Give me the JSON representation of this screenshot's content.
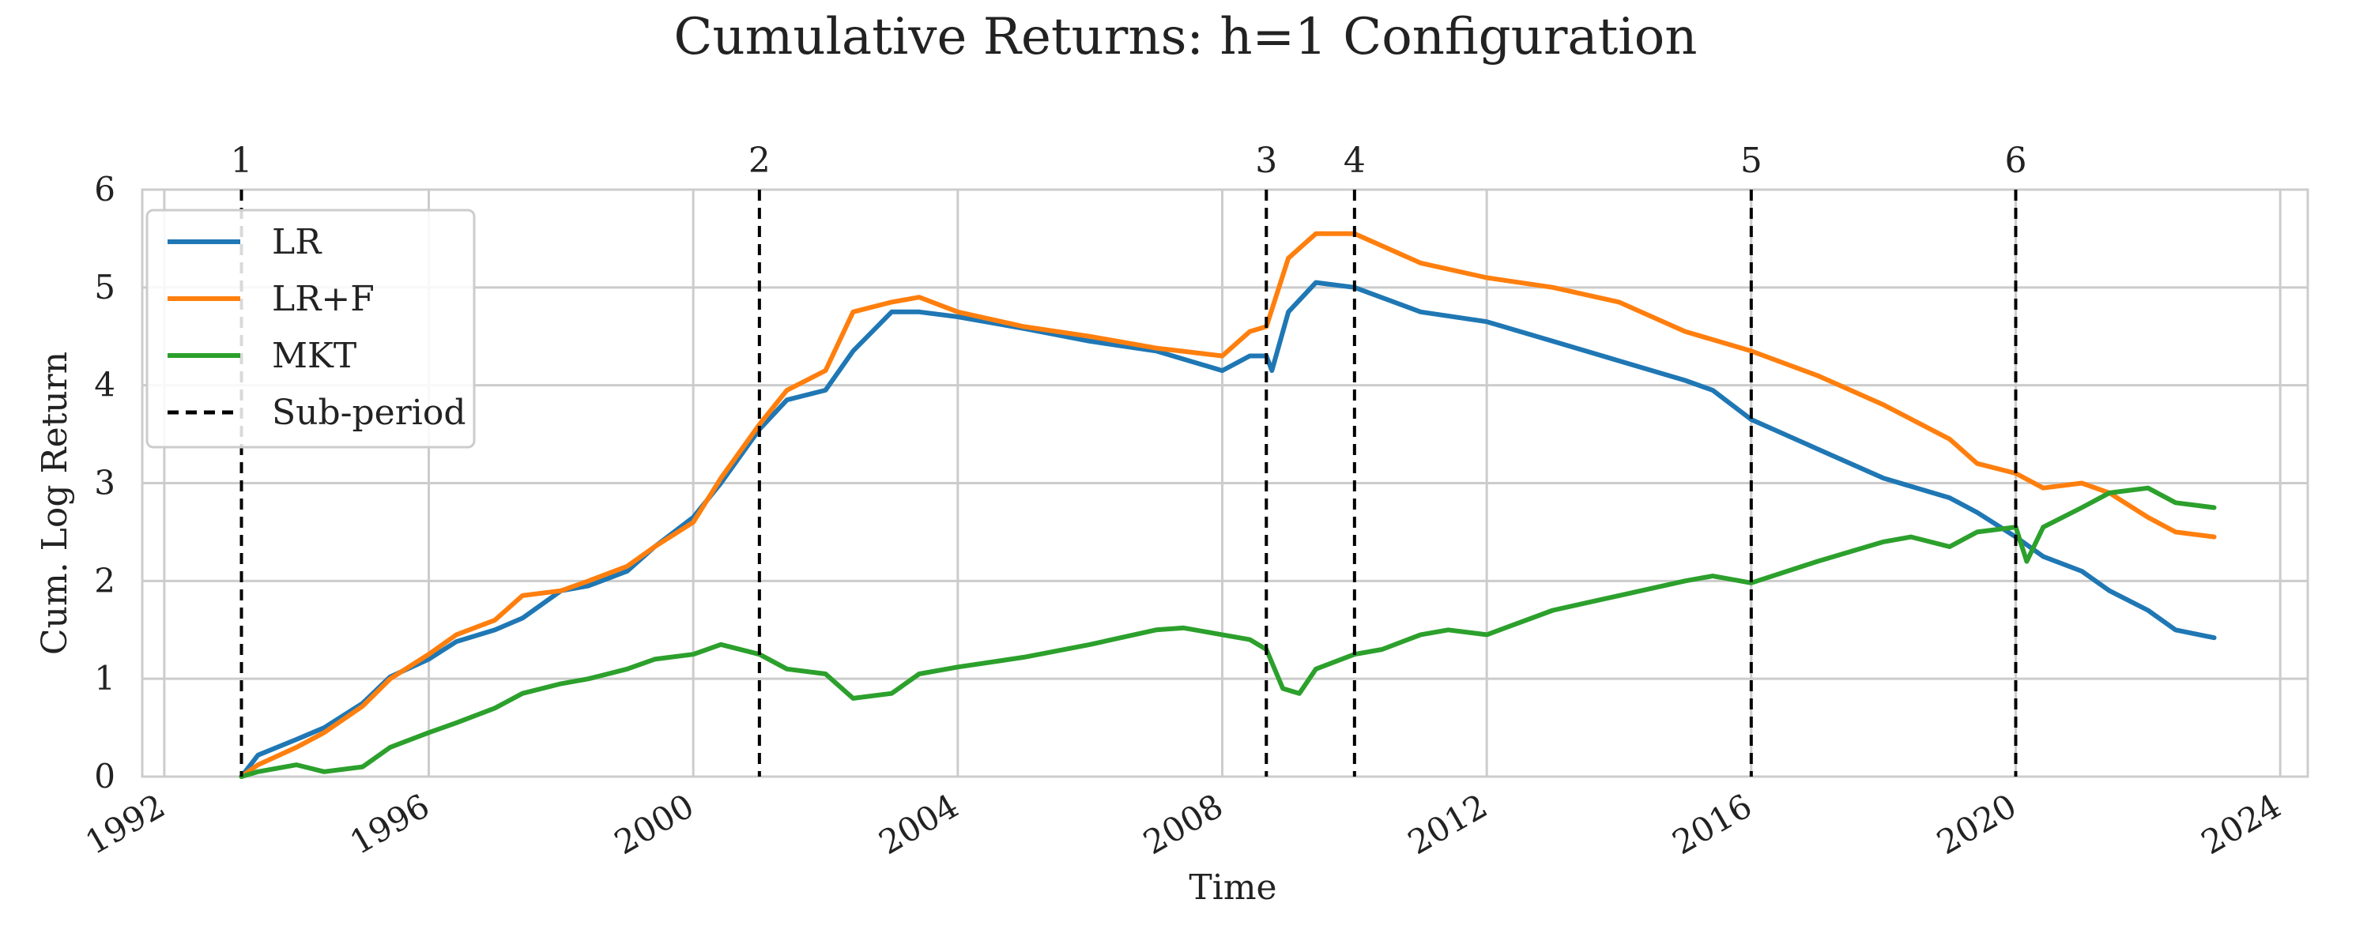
{
  "chart_data": {
    "type": "line",
    "title": "Cumulative Returns: h=1 Configuration",
    "xlabel": "Time",
    "ylabel": "Cum. Log Return",
    "xlim": [
      "1991-09-01",
      "2024-06-01"
    ],
    "ylim": [
      0,
      6
    ],
    "x_ticks": [
      "1992",
      "1996",
      "2000",
      "2004",
      "2008",
      "2012",
      "2016",
      "2020",
      "2024"
    ],
    "y_ticks": [
      "0",
      "1",
      "2",
      "3",
      "4",
      "5",
      "6"
    ],
    "grid": true,
    "legend_position": "top-left",
    "subperiods": [
      {
        "label": "1",
        "date": "1993-03-01"
      },
      {
        "label": "2",
        "date": "2001-01-01"
      },
      {
        "label": "3",
        "date": "2008-09-01"
      },
      {
        "label": "4",
        "date": "2010-01-01"
      },
      {
        "label": "5",
        "date": "2016-01-01"
      },
      {
        "label": "6",
        "date": "2020-01-01"
      }
    ],
    "subperiod_legend_label": "Sub-period",
    "series": [
      {
        "name": "LR",
        "color": "#1f77b4",
        "points": [
          [
            "1993-03-01",
            0.0
          ],
          [
            "1993-06-01",
            0.22
          ],
          [
            "1994-01-01",
            0.38
          ],
          [
            "1994-06-01",
            0.5
          ],
          [
            "1995-01-01",
            0.75
          ],
          [
            "1995-06-01",
            1.02
          ],
          [
            "1996-01-01",
            1.2
          ],
          [
            "1996-06-01",
            1.38
          ],
          [
            "1997-01-01",
            1.5
          ],
          [
            "1997-06-01",
            1.62
          ],
          [
            "1998-01-01",
            1.9
          ],
          [
            "1998-06-01",
            1.95
          ],
          [
            "1999-01-01",
            2.1
          ],
          [
            "1999-06-01",
            2.35
          ],
          [
            "2000-01-01",
            2.65
          ],
          [
            "2000-06-01",
            3.0
          ],
          [
            "2001-01-01",
            3.55
          ],
          [
            "2001-06-01",
            3.85
          ],
          [
            "2002-01-01",
            3.95
          ],
          [
            "2002-06-01",
            4.35
          ],
          [
            "2003-01-01",
            4.75
          ],
          [
            "2003-06-01",
            4.75
          ],
          [
            "2004-01-01",
            4.7
          ],
          [
            "2005-01-01",
            4.58
          ],
          [
            "2006-01-01",
            4.45
          ],
          [
            "2007-01-01",
            4.35
          ],
          [
            "2008-01-01",
            4.15
          ],
          [
            "2008-06-01",
            4.3
          ],
          [
            "2008-09-01",
            4.3
          ],
          [
            "2008-10-01",
            4.15
          ],
          [
            "2009-01-01",
            4.75
          ],
          [
            "2009-06-01",
            5.05
          ],
          [
            "2010-01-01",
            5.0
          ],
          [
            "2011-01-01",
            4.75
          ],
          [
            "2012-01-01",
            4.65
          ],
          [
            "2013-01-01",
            4.45
          ],
          [
            "2014-01-01",
            4.25
          ],
          [
            "2015-01-01",
            4.05
          ],
          [
            "2015-06-01",
            3.95
          ],
          [
            "2016-01-01",
            3.65
          ],
          [
            "2017-01-01",
            3.35
          ],
          [
            "2018-01-01",
            3.05
          ],
          [
            "2019-01-01",
            2.85
          ],
          [
            "2019-06-01",
            2.7
          ],
          [
            "2020-01-01",
            2.45
          ],
          [
            "2020-06-01",
            2.25
          ],
          [
            "2021-01-01",
            2.1
          ],
          [
            "2021-06-01",
            1.9
          ],
          [
            "2022-01-01",
            1.7
          ],
          [
            "2022-06-01",
            1.5
          ],
          [
            "2023-01-01",
            1.42
          ]
        ]
      },
      {
        "name": "LR+F",
        "color": "#ff7f0e",
        "points": [
          [
            "1993-03-01",
            0.0
          ],
          [
            "1993-06-01",
            0.12
          ],
          [
            "1994-01-01",
            0.3
          ],
          [
            "1994-06-01",
            0.45
          ],
          [
            "1995-01-01",
            0.72
          ],
          [
            "1995-06-01",
            1.0
          ],
          [
            "1996-01-01",
            1.25
          ],
          [
            "1996-06-01",
            1.45
          ],
          [
            "1997-01-01",
            1.6
          ],
          [
            "1997-06-01",
            1.85
          ],
          [
            "1998-01-01",
            1.9
          ],
          [
            "1998-06-01",
            2.0
          ],
          [
            "1999-01-01",
            2.15
          ],
          [
            "1999-06-01",
            2.35
          ],
          [
            "2000-01-01",
            2.6
          ],
          [
            "2000-06-01",
            3.05
          ],
          [
            "2001-01-01",
            3.6
          ],
          [
            "2001-06-01",
            3.95
          ],
          [
            "2002-01-01",
            4.15
          ],
          [
            "2002-06-01",
            4.75
          ],
          [
            "2003-01-01",
            4.85
          ],
          [
            "2003-06-01",
            4.9
          ],
          [
            "2004-01-01",
            4.75
          ],
          [
            "2005-01-01",
            4.6
          ],
          [
            "2006-01-01",
            4.5
          ],
          [
            "2007-01-01",
            4.38
          ],
          [
            "2008-01-01",
            4.3
          ],
          [
            "2008-06-01",
            4.55
          ],
          [
            "2008-09-01",
            4.6
          ],
          [
            "2009-01-01",
            5.3
          ],
          [
            "2009-06-01",
            5.55
          ],
          [
            "2010-01-01",
            5.55
          ],
          [
            "2011-01-01",
            5.25
          ],
          [
            "2012-01-01",
            5.1
          ],
          [
            "2013-01-01",
            5.0
          ],
          [
            "2014-01-01",
            4.85
          ],
          [
            "2015-01-01",
            4.55
          ],
          [
            "2016-01-01",
            4.35
          ],
          [
            "2017-01-01",
            4.1
          ],
          [
            "2018-01-01",
            3.8
          ],
          [
            "2019-01-01",
            3.45
          ],
          [
            "2019-06-01",
            3.2
          ],
          [
            "2020-01-01",
            3.1
          ],
          [
            "2020-06-01",
            2.95
          ],
          [
            "2021-01-01",
            3.0
          ],
          [
            "2021-06-01",
            2.9
          ],
          [
            "2022-01-01",
            2.65
          ],
          [
            "2022-06-01",
            2.5
          ],
          [
            "2023-01-01",
            2.45
          ]
        ]
      },
      {
        "name": "MKT",
        "color": "#2ca02c",
        "points": [
          [
            "1993-03-01",
            0.0
          ],
          [
            "1993-06-01",
            0.05
          ],
          [
            "1994-01-01",
            0.12
          ],
          [
            "1994-06-01",
            0.05
          ],
          [
            "1995-01-01",
            0.1
          ],
          [
            "1995-06-01",
            0.3
          ],
          [
            "1996-01-01",
            0.45
          ],
          [
            "1996-06-01",
            0.55
          ],
          [
            "1997-01-01",
            0.7
          ],
          [
            "1997-06-01",
            0.85
          ],
          [
            "1998-01-01",
            0.95
          ],
          [
            "1998-06-01",
            1.0
          ],
          [
            "1999-01-01",
            1.1
          ],
          [
            "1999-06-01",
            1.2
          ],
          [
            "2000-01-01",
            1.25
          ],
          [
            "2000-06-01",
            1.35
          ],
          [
            "2001-01-01",
            1.25
          ],
          [
            "2001-06-01",
            1.1
          ],
          [
            "2002-01-01",
            1.05
          ],
          [
            "2002-06-01",
            0.8
          ],
          [
            "2003-01-01",
            0.85
          ],
          [
            "2003-06-01",
            1.05
          ],
          [
            "2004-01-01",
            1.12
          ],
          [
            "2005-01-01",
            1.22
          ],
          [
            "2006-01-01",
            1.35
          ],
          [
            "2007-01-01",
            1.5
          ],
          [
            "2007-06-01",
            1.52
          ],
          [
            "2008-01-01",
            1.45
          ],
          [
            "2008-06-01",
            1.4
          ],
          [
            "2008-09-01",
            1.3
          ],
          [
            "2008-12-01",
            0.9
          ],
          [
            "2009-03-01",
            0.85
          ],
          [
            "2009-06-01",
            1.1
          ],
          [
            "2010-01-01",
            1.25
          ],
          [
            "2010-06-01",
            1.3
          ],
          [
            "2011-01-01",
            1.45
          ],
          [
            "2011-06-01",
            1.5
          ],
          [
            "2012-01-01",
            1.45
          ],
          [
            "2013-01-01",
            1.7
          ],
          [
            "2014-01-01",
            1.85
          ],
          [
            "2015-01-01",
            2.0
          ],
          [
            "2015-06-01",
            2.05
          ],
          [
            "2016-01-01",
            1.98
          ],
          [
            "2017-01-01",
            2.2
          ],
          [
            "2018-01-01",
            2.4
          ],
          [
            "2018-06-01",
            2.45
          ],
          [
            "2019-01-01",
            2.35
          ],
          [
            "2019-06-01",
            2.5
          ],
          [
            "2020-01-01",
            2.55
          ],
          [
            "2020-03-01",
            2.2
          ],
          [
            "2020-06-01",
            2.55
          ],
          [
            "2021-01-01",
            2.75
          ],
          [
            "2021-06-01",
            2.9
          ],
          [
            "2022-01-01",
            2.95
          ],
          [
            "2022-06-01",
            2.8
          ],
          [
            "2023-01-01",
            2.75
          ]
        ]
      }
    ]
  }
}
